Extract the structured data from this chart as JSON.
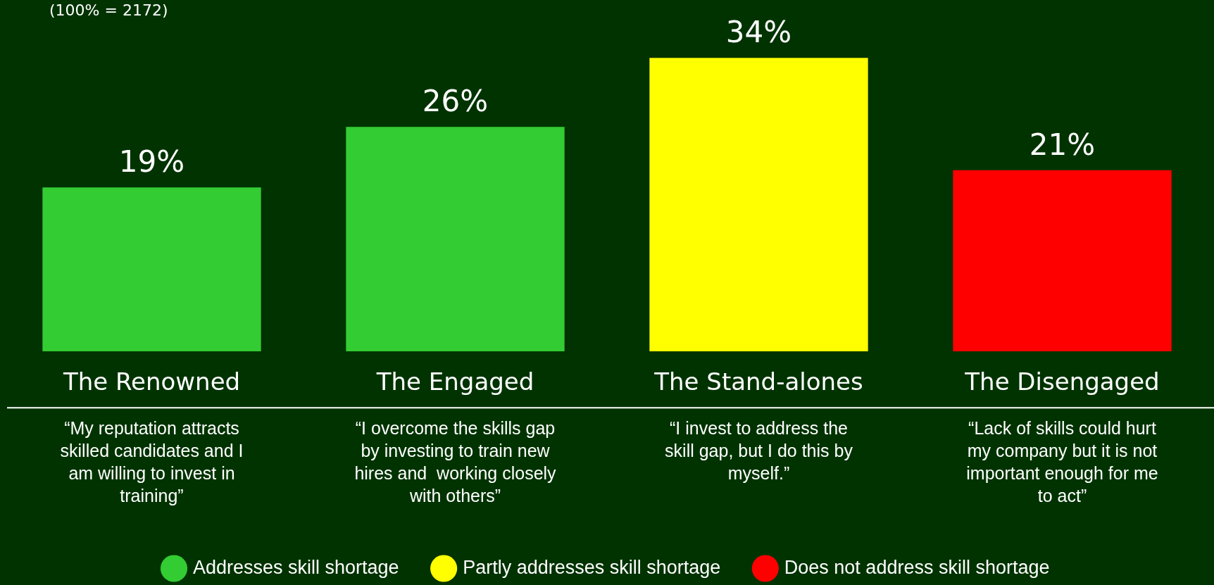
{
  "chart_data": {
    "type": "bar",
    "subtitle": "(100% = 2172)",
    "categories": [
      "The Renowned",
      "The Engaged",
      "The Stand-alones",
      "The Disengaged"
    ],
    "series": [
      {
        "name": "Addresses skill shortage",
        "color": "#33cc33",
        "values": [
          19,
          26,
          null,
          null
        ],
        "value_labels": [
          "19%",
          "26%",
          null,
          null
        ]
      },
      {
        "name": "Partly addresses skill shortage",
        "color": "#ffff00",
        "values": [
          null,
          null,
          34,
          null
        ],
        "value_labels": [
          null,
          null,
          "34%",
          null
        ]
      },
      {
        "name": "Does not address skill shortage",
        "color": "#ff0000",
        "values": [
          null,
          null,
          null,
          21
        ],
        "value_labels": [
          null,
          null,
          null,
          "21%"
        ]
      }
    ],
    "stacked": true,
    "legend": "bottom",
    "annotations": [
      "“My reputation attracts skilled candidates and I am willing to invest in training”",
      "“I overcome the skills gap by investing to train new hires and  working closely with others”",
      "“I invest to address the skill gap, but I do this by myself.”",
      "“Lack of skills could hurt my company but it is not important enough for me to act”"
    ]
  }
}
